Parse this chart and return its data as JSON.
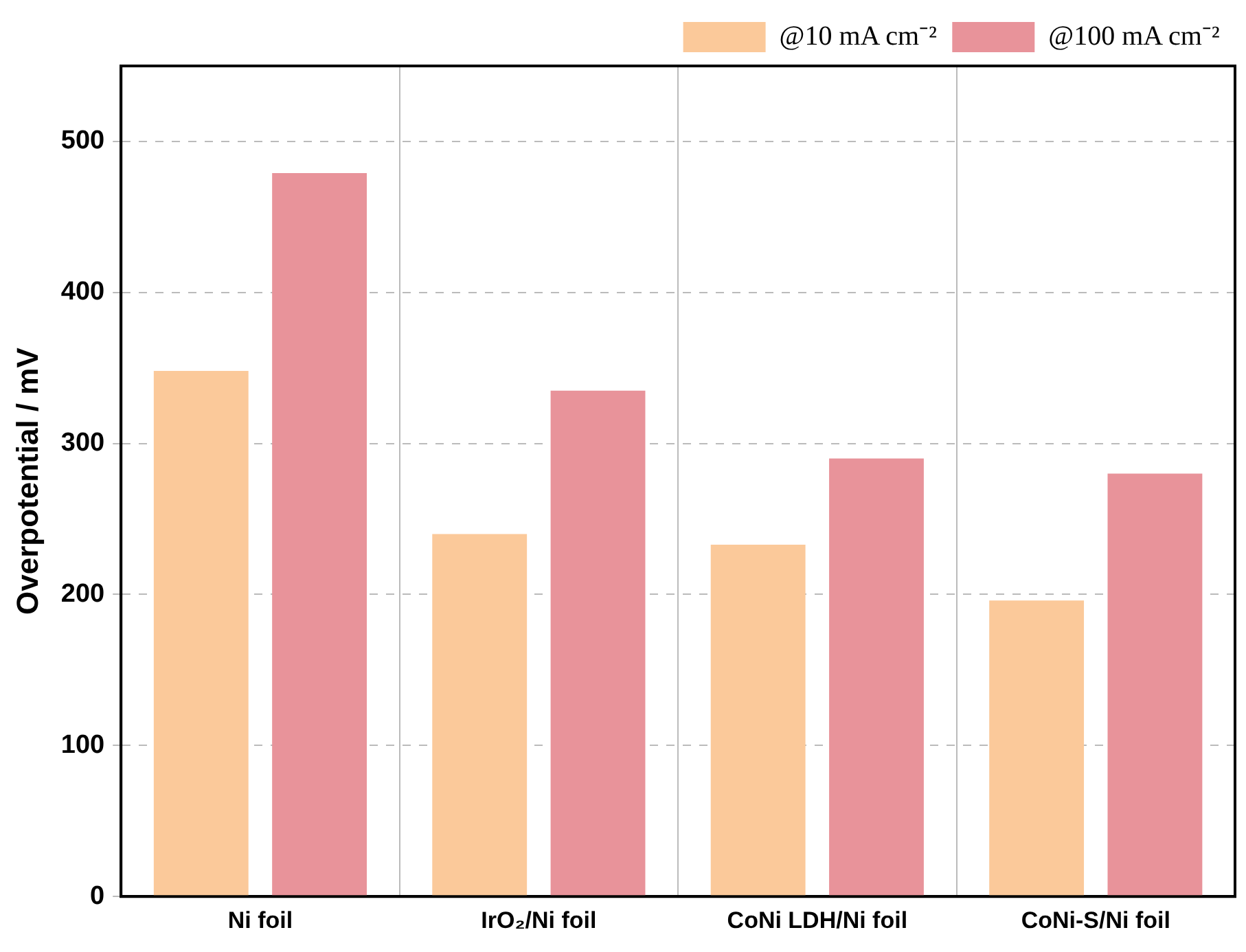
{
  "chart_data": {
    "type": "bar",
    "ylabel": "Overpotential / mV",
    "categories": [
      "Ni foil",
      "IrO₂/Ni foil",
      "CoNi LDH/Ni foil",
      "CoNi-S/Ni foil"
    ],
    "series": [
      {
        "name": "@10 mA cm⁻²",
        "color": "#fbc99a",
        "values": [
          348,
          240,
          233,
          196
        ]
      },
      {
        "name": "@100 mA cm⁻²",
        "color": "#e8939a",
        "values": [
          479,
          335,
          290,
          280
        ]
      }
    ],
    "ylim": [
      0,
      550
    ],
    "yticks": [
      0,
      100,
      200,
      300,
      400,
      500
    ],
    "grid": true,
    "legend": "top right"
  }
}
